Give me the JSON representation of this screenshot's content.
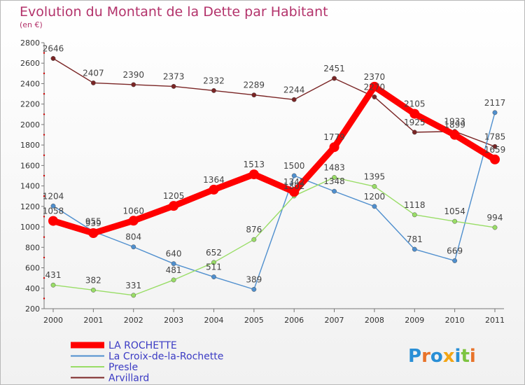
{
  "chart_data": {
    "type": "line",
    "title": "Evolution du Montant de la Dette par Habitant",
    "subtitle": "(en €)",
    "xlabel": "",
    "ylabel": "",
    "categories": [
      "2000",
      "2001",
      "2002",
      "2003",
      "2004",
      "2005",
      "2006",
      "2007",
      "2008",
      "2009",
      "2010",
      "2011"
    ],
    "ylim": [
      200,
      2800
    ],
    "yticks": [
      200,
      400,
      600,
      800,
      1000,
      1200,
      1400,
      1600,
      1800,
      2000,
      2200,
      2400,
      2600,
      2800
    ],
    "grid": false,
    "legend_position": "bottom-left",
    "series": [
      {
        "name": "LA ROCHETTE",
        "color": "#ff0000",
        "values": [
          1058,
          939,
          1060,
          1205,
          1364,
          1513,
          1342,
          1779,
          2370,
          2105,
          1899,
          1659
        ]
      },
      {
        "name": "La Croix-de-la-Rochette",
        "color": "#4f8fce",
        "values": [
          1204,
          955,
          804,
          640,
          511,
          389,
          1500,
          1348,
          1200,
          781,
          669,
          2117
        ]
      },
      {
        "name": "Presle",
        "color": "#99dd66",
        "values": [
          431,
          382,
          331,
          481,
          652,
          876,
          1302,
          1483,
          1395,
          1118,
          1054,
          994
        ]
      },
      {
        "name": "Arvillard",
        "color": "#7a2525",
        "values": [
          2646,
          2407,
          2390,
          2373,
          2332,
          2289,
          2244,
          2451,
          2270,
          1925,
          1933,
          1785
        ]
      }
    ]
  },
  "logo": {
    "letters": [
      "P",
      "r",
      "o",
      "x",
      "i",
      "t",
      "i"
    ],
    "colors": [
      "#2a8fd6",
      "#e8732a",
      "#2a8fd6",
      "#f2a515",
      "#2a8fd6",
      "#7dc440",
      "#e8732a"
    ]
  }
}
